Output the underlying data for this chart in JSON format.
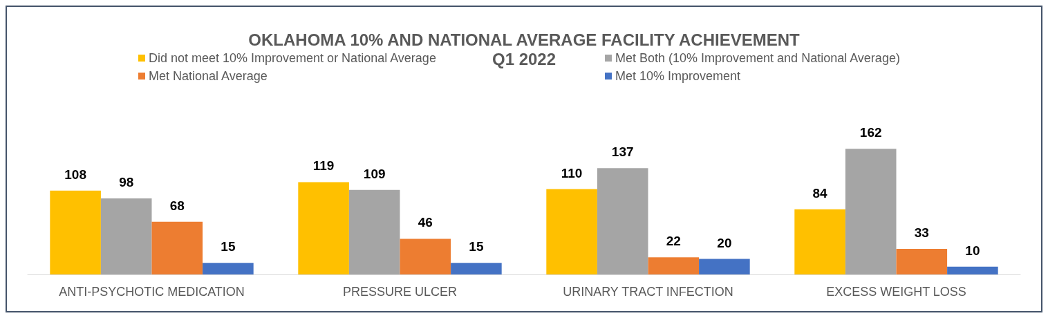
{
  "chart_data": {
    "type": "bar",
    "title": "OKLAHOMA 10% AND NATIONAL AVERAGE FACILITY ACHIEVEMENT",
    "subtitle": "Q1 2022",
    "categories": [
      "ANTI-PSYCHOTIC MEDICATION",
      "PRESSURE ULCER",
      "URINARY TRACT INFECTION",
      "EXCESS WEIGHT LOSS"
    ],
    "series": [
      {
        "name": "Did not meet 10% Improvement or National Average",
        "color": "#ffc000",
        "values": [
          108,
          119,
          110,
          84
        ]
      },
      {
        "name": "Met Both (10% Improvement and National Average)",
        "color": "#a5a5a5",
        "values": [
          98,
          109,
          137,
          162
        ]
      },
      {
        "name": "Met National Average",
        "color": "#ed7d31",
        "values": [
          68,
          46,
          22,
          33
        ]
      },
      {
        "name": "Met 10% Improvement",
        "color": "#4472c4",
        "values": [
          15,
          15,
          20,
          10
        ]
      }
    ],
    "data_labels": true,
    "legend": "top",
    "grid": false
  }
}
